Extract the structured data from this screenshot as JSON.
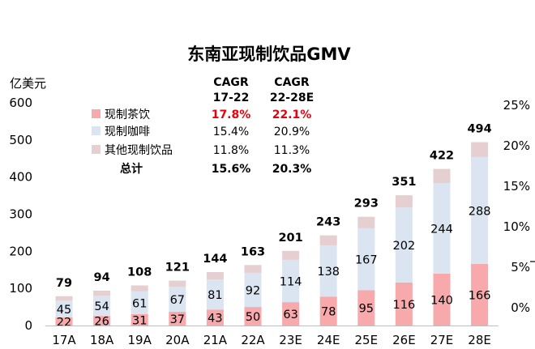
{
  "chart_data": {
    "type": "bar",
    "stacked": true,
    "title": "东南亚现制饮品GMV",
    "ylabel": "亿美元",
    "ylim": [
      0,
      600
    ],
    "yticks": [
      0,
      100,
      200,
      300,
      400,
      500,
      600
    ],
    "y2ticks": [
      "0%",
      "5%",
      "10%",
      "15%",
      "20%",
      "25%"
    ],
    "categories": [
      "17A",
      "18A",
      "19A",
      "20A",
      "21A",
      "22A",
      "23E",
      "24E",
      "25E",
      "26E",
      "27E",
      "28E"
    ],
    "series": [
      {
        "name": "现制茶饮",
        "color": "#f7a9ab",
        "values": [
          22,
          26,
          31,
          37,
          43,
          50,
          63,
          78,
          95,
          116,
          140,
          166
        ]
      },
      {
        "name": "现制咖啡",
        "color": "#dae5f1",
        "values": [
          45,
          54,
          61,
          67,
          81,
          92,
          114,
          138,
          167,
          202,
          244,
          288
        ]
      },
      {
        "name": "其他现制饮品",
        "color": "#e5cfd0",
        "values": [
          12,
          14,
          16,
          17,
          20,
          21,
          24,
          27,
          31,
          33,
          38,
          40
        ]
      }
    ],
    "totals": [
      79,
      94,
      108,
      121,
      144,
      163,
      201,
      243,
      293,
      351,
      422,
      494
    ],
    "grid": false,
    "legend": {
      "placement": "top-left",
      "headers": [
        [
          "CAGR",
          "17-22"
        ],
        [
          "CAGR",
          "22-28E"
        ]
      ],
      "rows": [
        {
          "label": "现制茶饮",
          "cagr1": "17.8%",
          "cagr2": "22.1%",
          "highlight": true
        },
        {
          "label": "现制咖啡",
          "cagr1": "15.4%",
          "cagr2": "20.9%",
          "highlight": false
        },
        {
          "label": "其他现制饮品",
          "cagr1": "11.8%",
          "cagr2": "11.3%",
          "highlight": false
        }
      ],
      "total": {
        "label": "总计",
        "cagr1": "15.6%",
        "cagr2": "20.3%"
      }
    },
    "highlight_color": "#e8000b"
  }
}
